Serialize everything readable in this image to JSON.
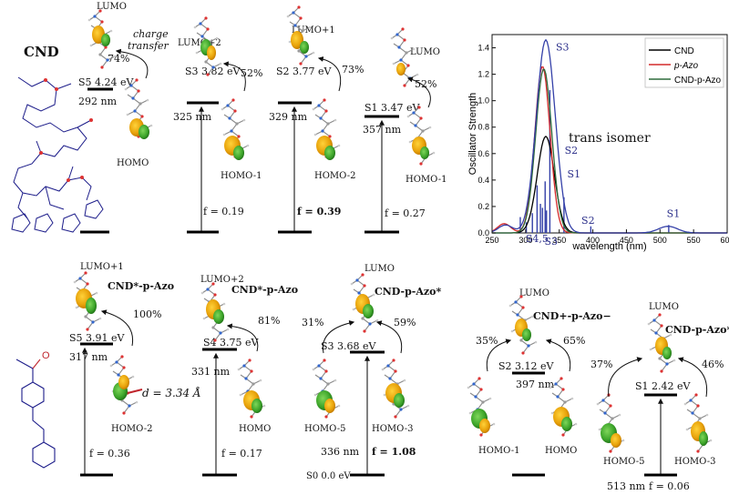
{
  "labels": {
    "cnd": "CND",
    "charge_transfer_1": "charge",
    "charge_transfer_2": "transfer",
    "trans_isomer": "trans isomer",
    "s0": "S0 0.0 eV"
  },
  "top_states": [
    {
      "state": "S5",
      "energy": "4.24 eV",
      "nm": "292 nm",
      "pct": "74%",
      "upper": "LUMO",
      "lower": "HOMO",
      "f": ""
    },
    {
      "state": "S3",
      "energy": "3.82 eV",
      "nm": "325 nm",
      "pct": "52%",
      "upper": "LUMO+2",
      "lower": "HOMO-1",
      "f": "f = 0.19"
    },
    {
      "state": "S2",
      "energy": "3.77 eV",
      "nm": "329 nm",
      "pct": "73%",
      "upper": "LUMO+1",
      "lower": "HOMO-2",
      "f": "f = 0.39"
    },
    {
      "state": "S1",
      "energy": "3.47 eV",
      "nm": "357 nm",
      "pct": "52%",
      "upper": "LUMO",
      "lower": "HOMO-1",
      "f": "f = 0.27"
    }
  ],
  "bottom_states": [
    {
      "state": "S5",
      "energy": "3.91 eV",
      "nm": "317 nm",
      "upper": "LUMO+1",
      "tag": "CND*-p-Azo",
      "pcts": [
        "100%"
      ],
      "lowers": [
        "HOMO-2"
      ],
      "f": "f = 0.36",
      "d": "d = 3.34 Å"
    },
    {
      "state": "S4",
      "energy": "3.75 eV",
      "nm": "331 nm",
      "upper": "LUMO+2",
      "tag": "CND*-p-Azo",
      "pcts": [
        "81%"
      ],
      "lowers": [
        "HOMO"
      ],
      "f": "f = 0.17"
    },
    {
      "state": "S3",
      "energy": "3.68 eV",
      "nm": "336 nm",
      "upper": "LUMO",
      "tag": "CND-p-Azo*",
      "pcts": [
        "31%",
        "59%"
      ],
      "lowers": [
        "HOMO-5",
        "HOMO-3"
      ],
      "f": "f = 1.08"
    },
    {
      "state": "S2",
      "energy": "3.12 eV",
      "nm": "397 nm",
      "upper": "LUMO",
      "tag": "CND+-p-Azo−",
      "pcts": [
        "35%",
        "65%"
      ],
      "lowers": [
        "HOMO-1",
        "HOMO"
      ],
      "f": ""
    },
    {
      "state": "S1",
      "energy": "2.42 eV",
      "nm": "513 nm",
      "upper": "LUMO",
      "tag": "CND-p-Azo*",
      "pcts": [
        "37%",
        "46%"
      ],
      "lowers": [
        "HOMO-5",
        "HOMO-3"
      ],
      "f": "f = 0.06"
    }
  ],
  "chart_data": {
    "type": "line",
    "xlabel": "wavelength (nm)",
    "ylabel": "Oscillator Strength",
    "xlim": [
      250,
      600
    ],
    "ylim": [
      0,
      1.5
    ],
    "xticks": [
      250,
      300,
      350,
      400,
      450,
      500,
      550,
      600
    ],
    "yticks": [
      0.0,
      0.2,
      0.4,
      0.6,
      0.8,
      1.0,
      1.2,
      1.4
    ],
    "legend_position": "top-right",
    "series": [
      {
        "name": "CND",
        "color": "#000000",
        "center": 330,
        "width": 18,
        "peak": 0.73
      },
      {
        "name": "p-Azo",
        "color": "#d42a2a",
        "center": 325,
        "width": 16,
        "peak": 1.26
      },
      {
        "name": "CND-p-Azo",
        "color": "#2e6b3c",
        "center": 327,
        "width": 17,
        "peak": 1.24
      },
      {
        "name": "CND-p-Azo blue",
        "color": "#3440a8",
        "center": 330,
        "width": 20,
        "peak": 1.46
      }
    ],
    "sticks": [
      {
        "x": 292,
        "y": 0.12
      },
      {
        "x": 301,
        "y": 0.08
      },
      {
        "x": 310,
        "y": 0.15
      },
      {
        "x": 317,
        "y": 0.36
      },
      {
        "x": 322,
        "y": 0.22
      },
      {
        "x": 325,
        "y": 0.19
      },
      {
        "x": 329,
        "y": 0.39
      },
      {
        "x": 331,
        "y": 0.17
      },
      {
        "x": 336,
        "y": 1.08
      },
      {
        "x": 357,
        "y": 0.27
      },
      {
        "x": 397,
        "y": 0.05
      },
      {
        "x": 513,
        "y": 0.06
      }
    ],
    "annotations": [
      {
        "text": "S3",
        "x": 345,
        "y": 1.38
      },
      {
        "text": "S2",
        "x": 358,
        "y": 0.6
      },
      {
        "text": "S1",
        "x": 362,
        "y": 0.42
      },
      {
        "text": "S2",
        "x": 383,
        "y": 0.07
      },
      {
        "text": "S1",
        "x": 510,
        "y": 0.12
      },
      {
        "text": "S4,5",
        "x": 300,
        "y": -0.07
      },
      {
        "text": "S3",
        "x": 328,
        "y": -0.09
      }
    ]
  }
}
